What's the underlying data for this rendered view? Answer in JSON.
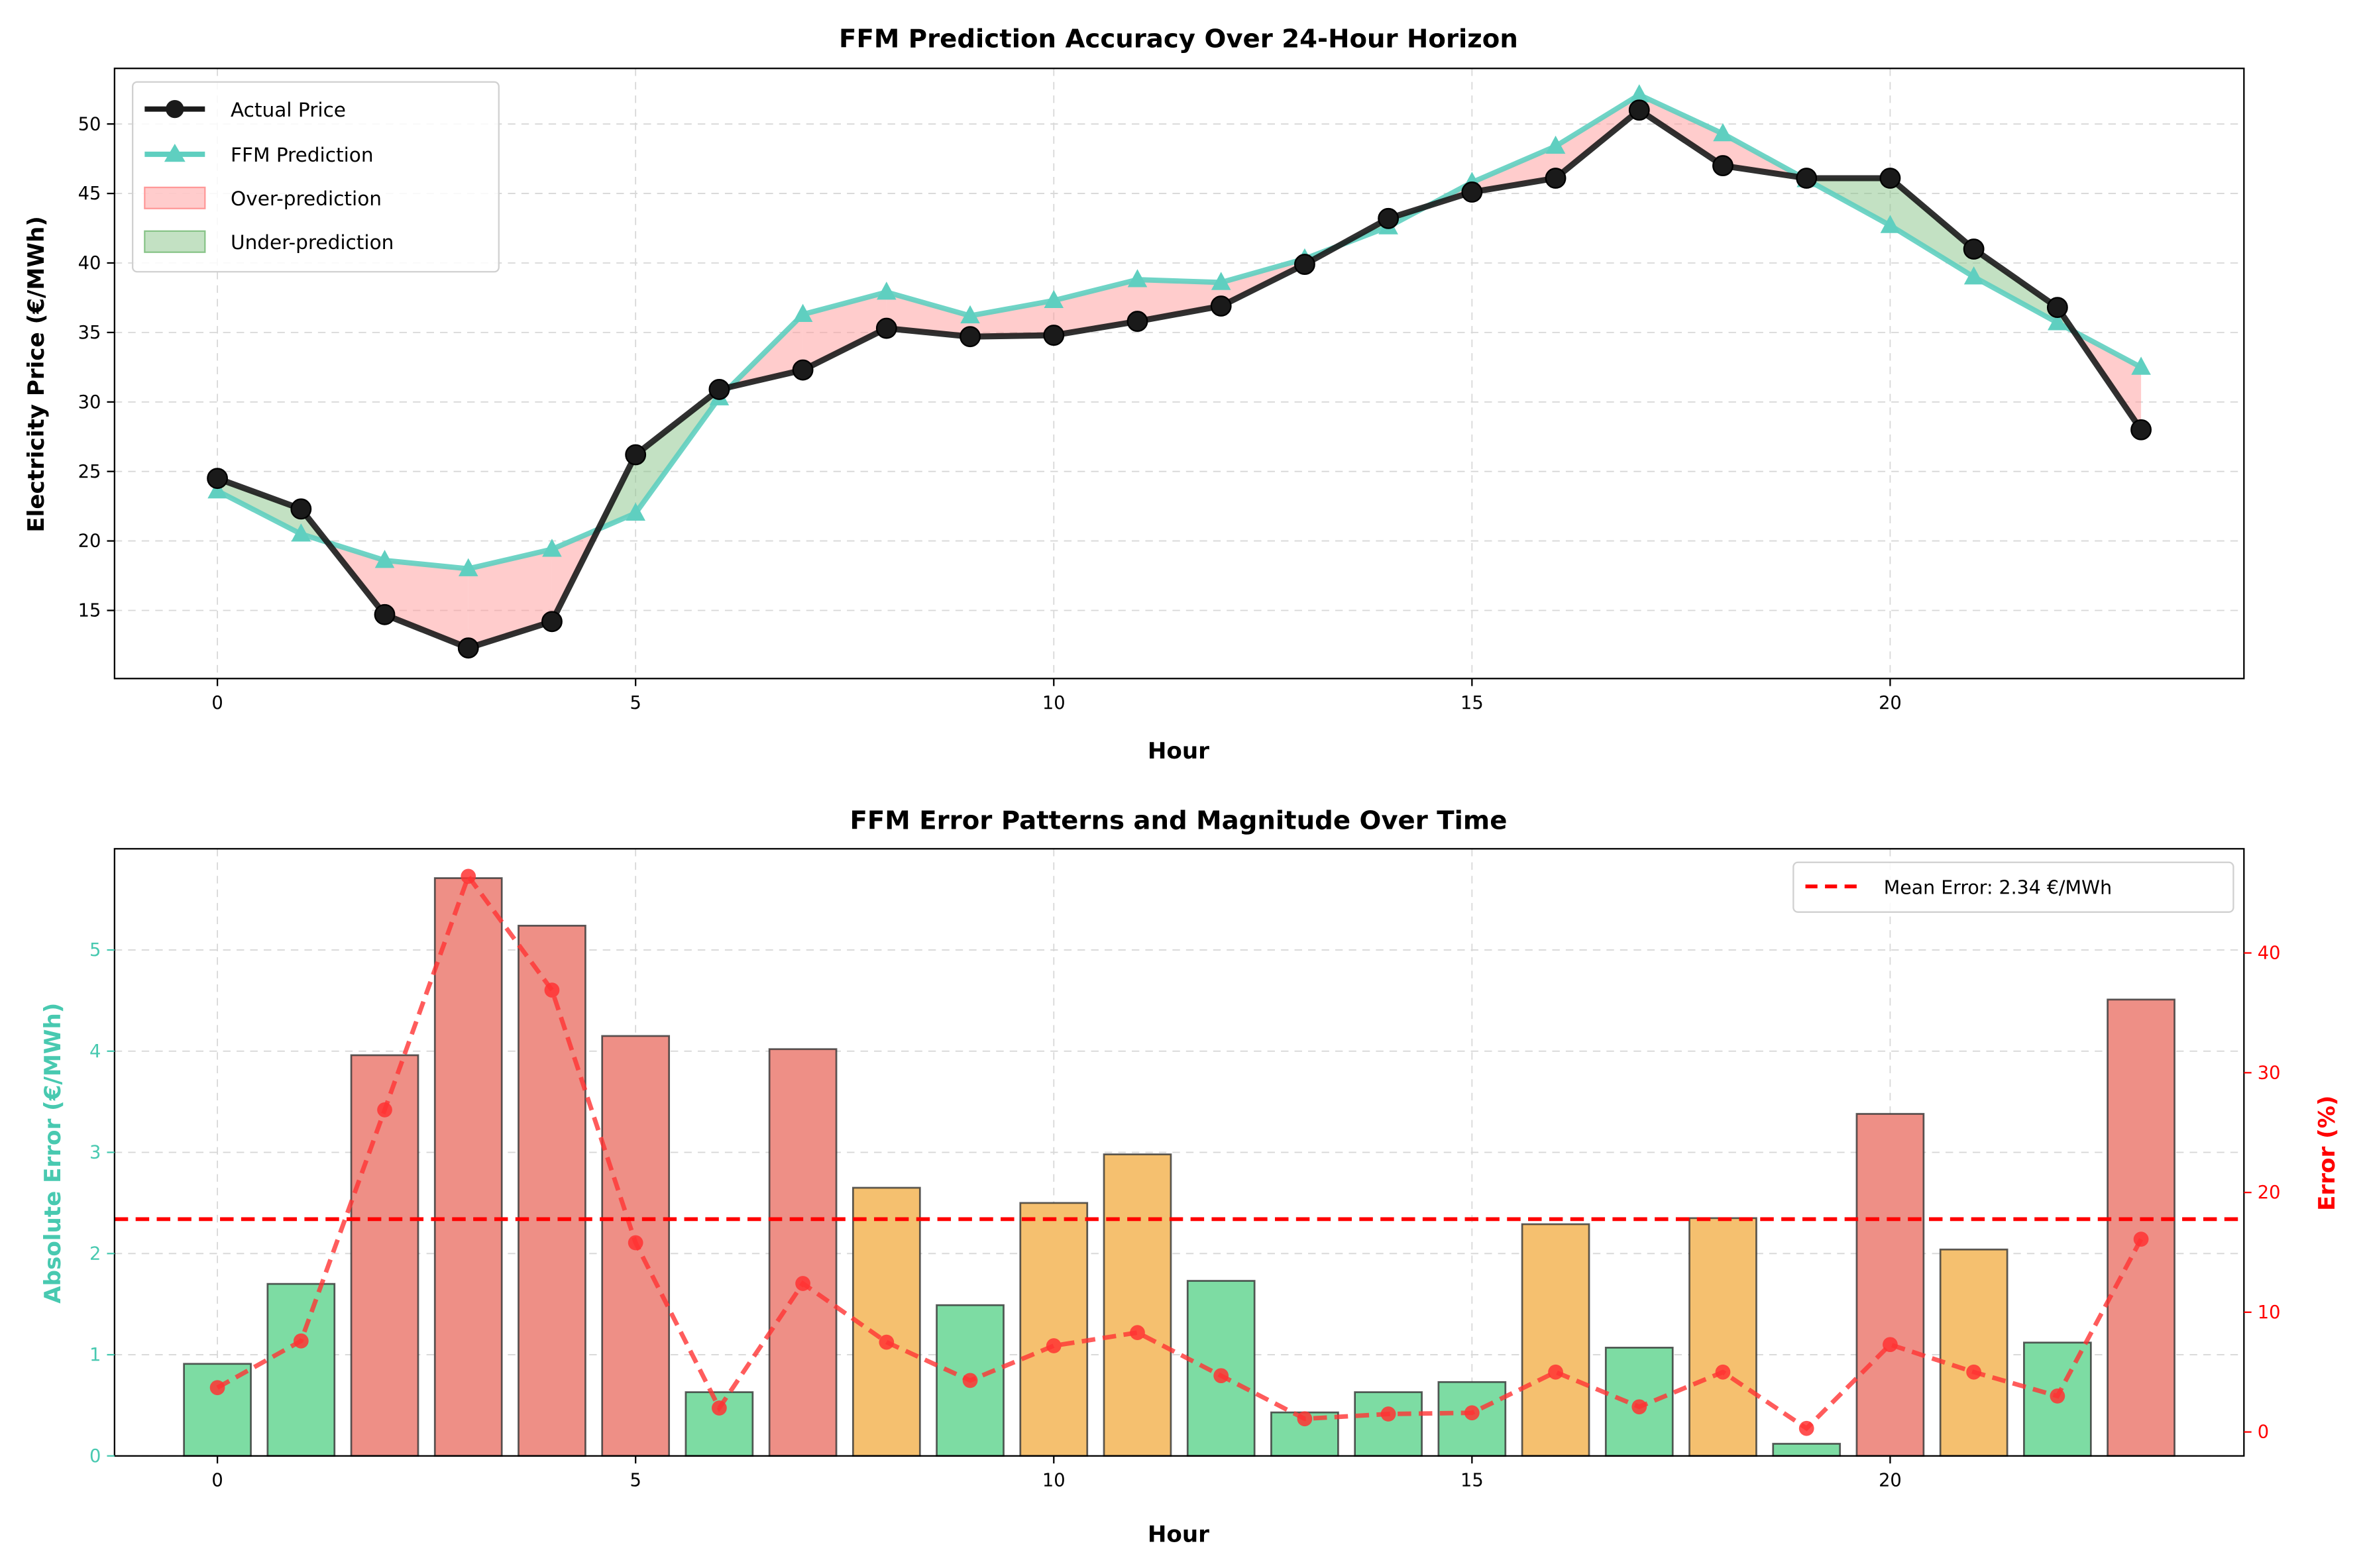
{
  "chart_data": [
    {
      "type": "line",
      "title": "FFM Prediction Accuracy Over 24-Hour Horizon",
      "xlabel": "Hour",
      "ylabel": "Electricity Price (€/MWh)",
      "xlim": [
        -1.23,
        24.23
      ],
      "ylim": [
        10.1,
        54.0
      ],
      "xticks": [
        0,
        5,
        10,
        15,
        20
      ],
      "yticks": [
        15,
        20,
        25,
        30,
        35,
        40,
        45,
        50
      ],
      "grid": true,
      "legend_position": "top-left",
      "x": [
        0,
        1,
        2,
        3,
        4,
        5,
        6,
        7,
        8,
        9,
        10,
        11,
        12,
        13,
        14,
        15,
        16,
        17,
        18,
        19,
        20,
        21,
        22,
        23
      ],
      "series": [
        {
          "name": "Actual Price",
          "color": "#1a1a1a",
          "values": [
            24.5,
            22.3,
            14.7,
            12.3,
            14.2,
            26.2,
            30.9,
            32.3,
            35.3,
            34.7,
            34.8,
            35.8,
            36.9,
            39.9,
            43.2,
            45.1,
            46.1,
            51.0,
            47.0,
            46.1,
            46.1,
            41.0,
            36.8,
            28.0
          ]
        },
        {
          "name": "FFM Prediction",
          "color": "#5fcfc0",
          "values": [
            23.6,
            20.5,
            18.6,
            18.0,
            19.4,
            22.0,
            30.3,
            36.3,
            37.9,
            36.2,
            37.3,
            38.8,
            38.6,
            40.3,
            42.6,
            45.8,
            48.4,
            52.1,
            49.3,
            46.0,
            42.7,
            39.0,
            35.7,
            32.5
          ]
        }
      ],
      "fills": [
        {
          "name": "Over-prediction",
          "color": "#ff9999"
        },
        {
          "name": "Under-prediction",
          "color": "#88c488"
        }
      ]
    },
    {
      "type": "bar",
      "title": "FFM Error Patterns and Magnitude Over Time",
      "xlabel": "Hour",
      "ylabel": "Absolute Error (€/MWh)",
      "ylabel_right": "Error (%)",
      "xlim": [
        -1.23,
        24.23
      ],
      "ylim": [
        0,
        6.0
      ],
      "ylim_right": [
        -2.0,
        48.7
      ],
      "xticks": [
        0,
        5,
        10,
        15,
        20
      ],
      "yticks": [
        0,
        1,
        2,
        3,
        4,
        5
      ],
      "yticks_right": [
        0,
        10,
        20,
        30,
        40
      ],
      "grid": true,
      "legend_position": "top-right",
      "x": [
        0,
        1,
        2,
        3,
        4,
        5,
        6,
        7,
        8,
        9,
        10,
        11,
        12,
        13,
        14,
        15,
        16,
        17,
        18,
        19,
        20,
        21,
        22,
        23
      ],
      "abs_error": [
        0.91,
        1.7,
        3.96,
        5.71,
        5.24,
        4.15,
        0.63,
        4.02,
        2.65,
        1.49,
        2.5,
        2.98,
        1.73,
        0.43,
        0.63,
        0.73,
        2.29,
        1.07,
        2.35,
        0.12,
        3.38,
        2.04,
        1.12,
        4.51
      ],
      "pct_error": [
        3.7,
        7.6,
        26.9,
        46.4,
        36.9,
        15.8,
        2.0,
        12.4,
        7.5,
        4.3,
        7.2,
        8.3,
        4.7,
        1.1,
        1.5,
        1.6,
        5.0,
        2.1,
        5.0,
        0.3,
        7.3,
        5.0,
        3.0,
        16.1
      ],
      "bar_colors": {
        "low": "#7ddca3",
        "mid": "#f5c06f",
        "high": "#ee8f86"
      },
      "pct_color": "#ff3333",
      "mean_error": {
        "value": 2.34,
        "label": "Mean Error: 2.34 €/MWh",
        "color": "#ff0000"
      },
      "left_axis_color": "#48c9b0",
      "right_axis_color": "#ff0000"
    }
  ]
}
